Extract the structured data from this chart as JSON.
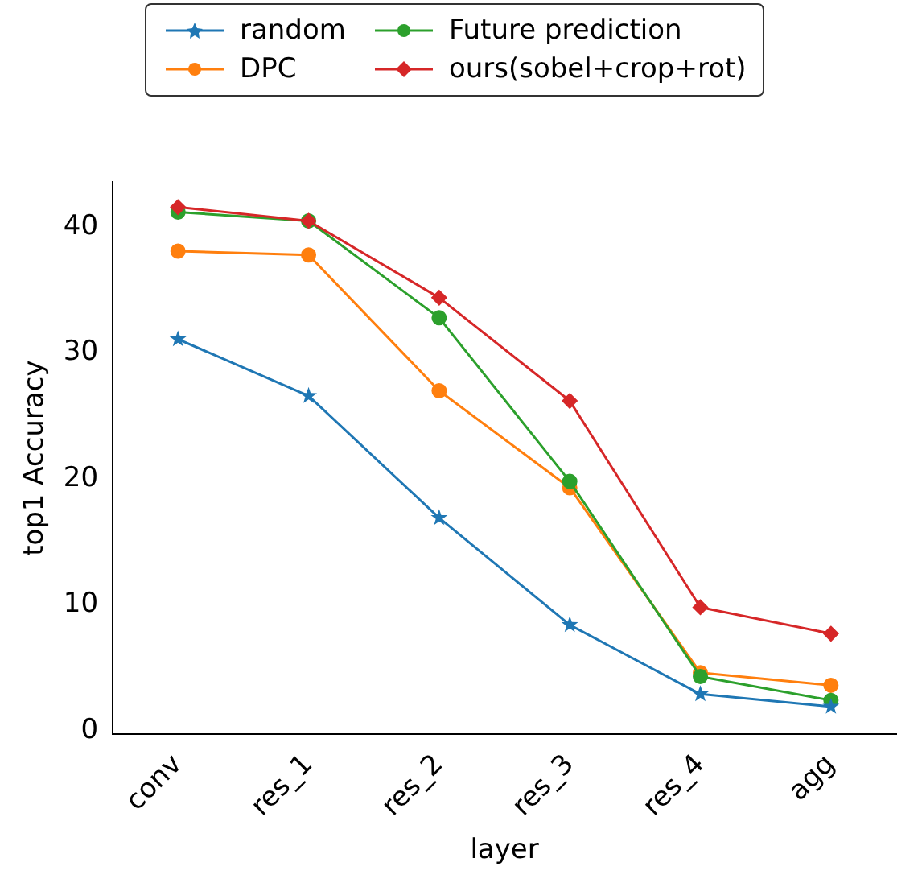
{
  "chart_data": {
    "type": "line",
    "xlabel": "layer",
    "ylabel": "top1 Accuracy",
    "categories": [
      "conv",
      "res_1",
      "res_2",
      "res_3",
      "res_4",
      "agg"
    ],
    "series": [
      {
        "name": "random",
        "color": "#1f77b4",
        "marker": "star",
        "values": [
          31.1,
          26.6,
          16.9,
          8.4,
          2.9,
          1.9
        ]
      },
      {
        "name": "DPC",
        "color": "#ff7f0e",
        "marker": "circle",
        "values": [
          38.1,
          37.8,
          27.0,
          19.3,
          4.6,
          3.6
        ]
      },
      {
        "name": "Future prediction",
        "color": "#2ca02c",
        "marker": "circle",
        "values": [
          41.2,
          40.5,
          32.8,
          19.8,
          4.3,
          2.4
        ]
      },
      {
        "name": "ours(sobel+crop+rot)",
        "color": "#d62728",
        "marker": "diamond",
        "values": [
          41.6,
          40.5,
          34.4,
          26.2,
          9.8,
          7.7
        ]
      }
    ],
    "ylim": [
      -0.3,
      43.6
    ],
    "yticks": [
      0,
      10,
      20,
      30,
      40
    ],
    "grid": false,
    "legend": "top",
    "line_style": "solid"
  }
}
